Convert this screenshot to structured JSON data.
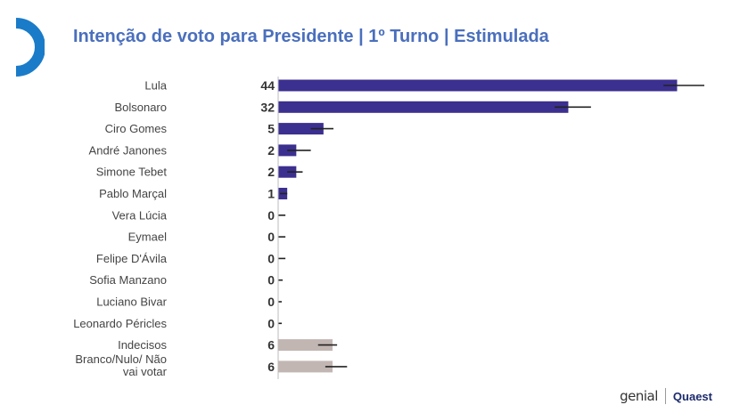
{
  "colors": {
    "primary": "#3b2f8f",
    "secondary": "#c2b6b2",
    "title": "#4a6fbd",
    "accent": "#1a7bc9"
  },
  "logos": {
    "left": "genial",
    "right": "Quaest"
  },
  "chart_data": {
    "type": "bar",
    "orientation": "horizontal",
    "title": "Intenção de voto para Presidente | 1º Turno | Estimulada",
    "categories": [
      "Lula",
      "Bolsonaro",
      "Ciro Gomes",
      "André Janones",
      "Simone Tebet",
      "Pablo Marçal",
      "Vera Lúcia",
      "Eymael",
      "Felipe D'Ávila",
      "Sofia Manzano",
      "Luciano Bivar",
      "Leonardo Péricles",
      "Indecisos",
      "Branco/Nulo/ Não vai votar"
    ],
    "values": [
      44,
      32,
      5,
      2,
      2,
      1,
      0,
      0,
      0,
      0,
      0,
      0,
      6,
      6
    ],
    "error_low": [
      42.5,
      30.5,
      3.6,
      1.0,
      1.0,
      0.2,
      0,
      0,
      0,
      0,
      0,
      0,
      4.4,
      5.2
    ],
    "error_high": [
      47,
      34.5,
      6.1,
      3.6,
      2.7,
      1.0,
      0.8,
      0.8,
      0.8,
      0.5,
      0.4,
      0.4,
      6.5,
      7.6
    ],
    "bar_colors": [
      "primary",
      "primary",
      "primary",
      "primary",
      "primary",
      "primary",
      "primary",
      "primary",
      "primary",
      "primary",
      "primary",
      "primary",
      "secondary",
      "secondary"
    ],
    "xlim": [
      0,
      47
    ],
    "grid": false
  }
}
